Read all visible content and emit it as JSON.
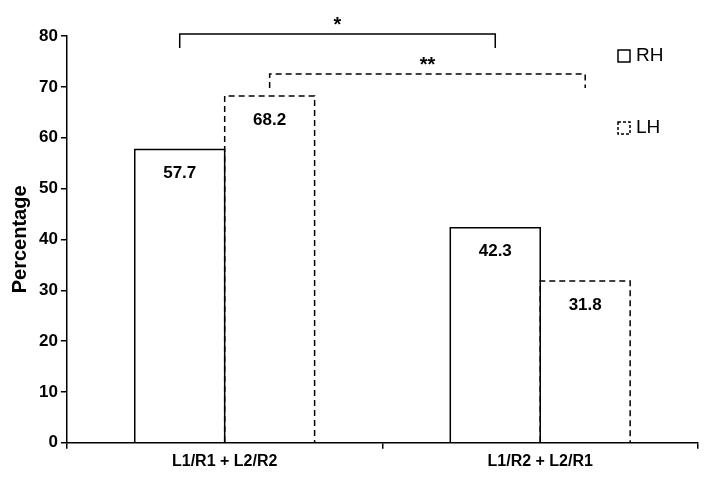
{
  "chart_data": {
    "type": "bar",
    "y_label": "Percentage",
    "categories": [
      "L1/R1 + L2/R2",
      "L1/R2 + L2/R1"
    ],
    "series": [
      {
        "name": "RH",
        "color": "#000000",
        "line_style": "solid",
        "values": [
          57.7,
          42.3
        ]
      },
      {
        "name": "LH",
        "color": "#000000",
        "line_style": "dashed",
        "values": [
          68.2,
          31.8
        ]
      }
    ],
    "ylim": [
      0,
      80
    ],
    "yticks": [
      0,
      10,
      20,
      30,
      40,
      50,
      60,
      70,
      80
    ],
    "grid": false,
    "legend": "upper right",
    "data_labels": true,
    "annotations": [
      {
        "text": "*",
        "series": "RH"
      },
      {
        "text": "**",
        "series": "LH"
      }
    ]
  }
}
